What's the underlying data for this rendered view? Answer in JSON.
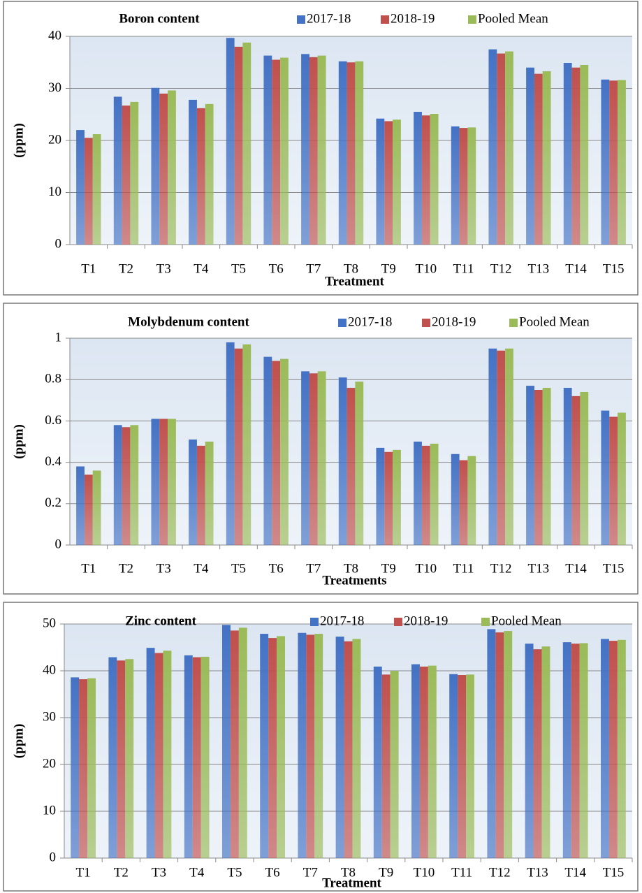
{
  "chart_data": [
    {
      "type": "bar",
      "title": "Boron content",
      "y_label": "(ppm)",
      "x_label": "Treatment",
      "categories": [
        "T1",
        "T2",
        "T3",
        "T4",
        "T5",
        "T6",
        "T7",
        "T8",
        "T9",
        "T10",
        "T11",
        "T12",
        "T13",
        "T14",
        "T15"
      ],
      "series": [
        {
          "name": "2017-18",
          "color": "#4472c4",
          "values": [
            22,
            28.4,
            30.1,
            27.8,
            39.7,
            36.3,
            36.6,
            35.2,
            24.2,
            25.5,
            22.7,
            37.5,
            34,
            34.9,
            31.7
          ]
        },
        {
          "name": "2018-19",
          "color": "#c0504d",
          "values": [
            20.5,
            26.7,
            29,
            26.2,
            38,
            35.5,
            36,
            35,
            23.7,
            24.8,
            22.4,
            36.7,
            32.8,
            34,
            31.5
          ]
        },
        {
          "name": "Pooled Mean",
          "color": "#9bbb59",
          "values": [
            21.2,
            27.4,
            29.6,
            27,
            38.8,
            35.9,
            36.3,
            35.2,
            24,
            25.1,
            22.5,
            37.1,
            33.3,
            34.5,
            31.6
          ]
        }
      ],
      "ylim": [
        0,
        40
      ],
      "yticks": [
        0,
        10,
        20,
        30,
        40
      ],
      "grid": true
    },
    {
      "type": "bar",
      "title": "Molybdenum content",
      "y_label": "(ppm)",
      "x_label": "Treatments",
      "categories": [
        "T1",
        "T2",
        "T3",
        "T4",
        "T5",
        "T6",
        "T7",
        "T8",
        "T9",
        "T10",
        "T11",
        "T12",
        "T13",
        "T14",
        "T15"
      ],
      "series": [
        {
          "name": "2017-18",
          "color": "#4472c4",
          "values": [
            0.38,
            0.58,
            0.61,
            0.51,
            0.98,
            0.91,
            0.84,
            0.81,
            0.47,
            0.5,
            0.44,
            0.95,
            0.77,
            0.76,
            0.65
          ]
        },
        {
          "name": "2018-19",
          "color": "#c0504d",
          "values": [
            0.34,
            0.57,
            0.61,
            0.48,
            0.95,
            0.89,
            0.83,
            0.76,
            0.45,
            0.48,
            0.41,
            0.94,
            0.75,
            0.72,
            0.62
          ]
        },
        {
          "name": "Pooled Mean",
          "color": "#9bbb59",
          "values": [
            0.36,
            0.58,
            0.61,
            0.5,
            0.97,
            0.9,
            0.84,
            0.79,
            0.46,
            0.49,
            0.43,
            0.95,
            0.76,
            0.74,
            0.64
          ]
        }
      ],
      "ylim": [
        0,
        1
      ],
      "yticks": [
        0,
        0.2,
        0.4,
        0.6,
        0.8,
        1
      ],
      "grid": true
    },
    {
      "type": "bar",
      "title": "Zinc content",
      "y_label": "(ppm)",
      "x_label": "Treatment",
      "categories": [
        "T1",
        "T2",
        "T3",
        "T4",
        "T5",
        "T6",
        "T7",
        "T8",
        "T9",
        "T10",
        "T11",
        "T12",
        "T13",
        "T14",
        "T15"
      ],
      "series": [
        {
          "name": "2017-18",
          "color": "#4472c4",
          "values": [
            38.6,
            42.9,
            44.9,
            43.3,
            49.8,
            47.9,
            48.1,
            47.3,
            40.9,
            41.4,
            39.3,
            48.9,
            45.8,
            46.1,
            46.8
          ]
        },
        {
          "name": "2018-19",
          "color": "#c0504d",
          "values": [
            38.2,
            42.2,
            43.8,
            42.9,
            48.6,
            47,
            47.7,
            46.3,
            39.2,
            40.9,
            39.1,
            48.2,
            44.6,
            45.8,
            46.4
          ]
        },
        {
          "name": "Pooled Mean",
          "color": "#9bbb59",
          "values": [
            38.4,
            42.5,
            44.3,
            43,
            49.2,
            47.4,
            47.9,
            46.8,
            40,
            41.1,
            39.2,
            48.5,
            45.2,
            45.9,
            46.6
          ]
        }
      ],
      "ylim": [
        0,
        50
      ],
      "yticks": [
        0,
        10,
        20,
        30,
        40,
        50
      ],
      "grid": true
    }
  ]
}
